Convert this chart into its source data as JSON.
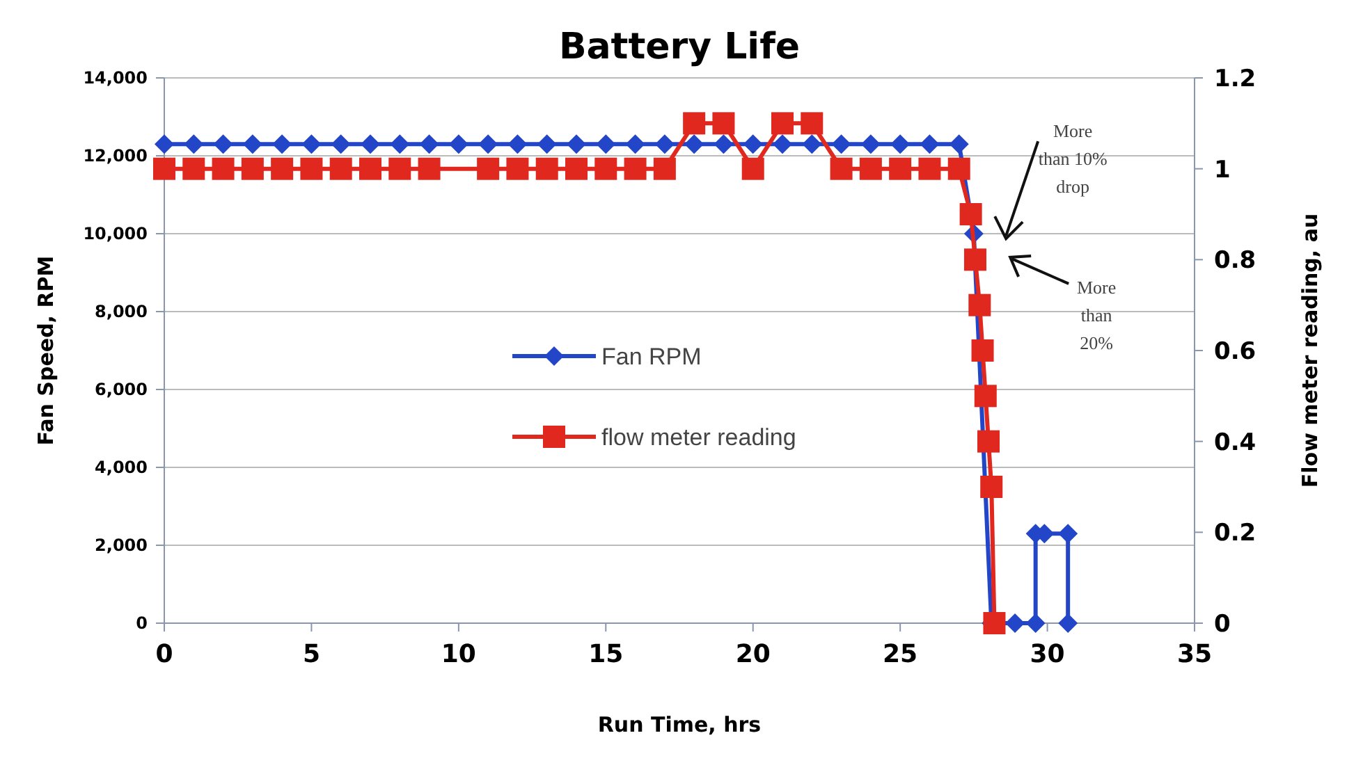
{
  "chart_data": {
    "type": "line",
    "title": "Battery Life",
    "xlabel": "Run Time, hrs",
    "ylabel": "Fan Speed, RPM",
    "y2label": "Flow meter reading, au",
    "xlim": [
      0,
      35
    ],
    "xticks": [
      0,
      5,
      10,
      15,
      20,
      25,
      30,
      35
    ],
    "ylim": [
      0,
      14000
    ],
    "yticks": [
      {
        "value": 0,
        "label": "0"
      },
      {
        "value": 2000,
        "label": "2,000"
      },
      {
        "value": 4000,
        "label": "4,000"
      },
      {
        "value": 6000,
        "label": "6,000"
      },
      {
        "value": 8000,
        "label": "8,000"
      },
      {
        "value": 10000,
        "label": "10,000"
      },
      {
        "value": 12000,
        "label": "12,000"
      },
      {
        "value": 14000,
        "label": "14,000"
      }
    ],
    "y2lim": [
      0,
      1.2
    ],
    "y2ticks": [
      0,
      0.2,
      0.4,
      0.6,
      0.8,
      1,
      1.2
    ],
    "grid": "y",
    "legend": "left",
    "series": [
      {
        "name": "Fan RPM",
        "color": "#2346c8",
        "marker": "diamond",
        "x": [
          0,
          1,
          2,
          3,
          4,
          5,
          6,
          7,
          8,
          9,
          10,
          11,
          12,
          13,
          14,
          15,
          16,
          17,
          18,
          19,
          20,
          21,
          22,
          23,
          24,
          25,
          26,
          27,
          27.5,
          28.1,
          28.9,
          29.6,
          29.6,
          29.9,
          30.7,
          30.7
        ],
        "values": [
          12300,
          12300,
          12300,
          12300,
          12300,
          12300,
          12300,
          12300,
          12300,
          12300,
          12300,
          12300,
          12300,
          12300,
          12300,
          12300,
          12300,
          12300,
          12300,
          12300,
          12300,
          12300,
          12300,
          12300,
          12300,
          12300,
          12300,
          12300,
          10000,
          0,
          0,
          0,
          2300,
          2300,
          2300,
          0
        ]
      },
      {
        "name": "flow meter reading",
        "color": "#e0281e",
        "marker": "square",
        "axis": "y2",
        "x": [
          0,
          1,
          2,
          3,
          4,
          5,
          6,
          7,
          8,
          9,
          11,
          12,
          13,
          14,
          15,
          16,
          17,
          18,
          19,
          20,
          21,
          22,
          23,
          24,
          25,
          26,
          27,
          27.4,
          27.55,
          27.7,
          27.8,
          27.9,
          28,
          28.1,
          28.2
        ],
        "values": [
          1,
          1,
          1,
          1,
          1,
          1,
          1,
          1,
          1,
          1,
          1,
          1,
          1,
          1,
          1,
          1,
          1,
          1.1,
          1.1,
          1,
          1.1,
          1.1,
          1,
          1,
          1,
          1,
          1,
          0.9,
          0.8,
          0.7,
          0.6,
          0.5,
          0.4,
          0.3,
          0
        ]
      }
    ],
    "annotations": [
      "More than 10% drop",
      "More than 20%"
    ]
  }
}
